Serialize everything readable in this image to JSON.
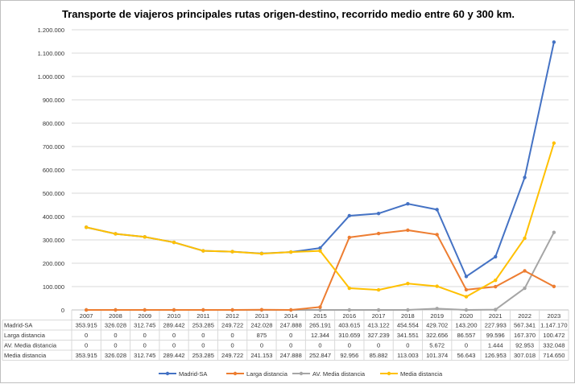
{
  "chart_data": {
    "type": "line",
    "title": "Transporte  de viajeros principales  rutas origen-destino,  recorrido medio entre 60 y 300 km.",
    "categories": [
      "2007",
      "2008",
      "2009",
      "2010",
      "2011",
      "2012",
      "2013",
      "2014",
      "2015",
      "2016",
      "2017",
      "2018",
      "2019",
      "2020",
      "2021",
      "2022",
      "2023"
    ],
    "ylim": [
      0,
      1200000
    ],
    "yticks": [
      0,
      100000,
      200000,
      300000,
      400000,
      500000,
      600000,
      700000,
      800000,
      900000,
      1000000,
      1100000,
      1200000
    ],
    "ytick_labels": [
      "0",
      "100.000",
      "200.000",
      "300.000",
      "400.000",
      "500.000",
      "600.000",
      "700.000",
      "800.000",
      "900.000",
      "1.000.000",
      "1.100.000",
      "1.200.000"
    ],
    "grid": true,
    "legend": "bottom",
    "series": [
      {
        "name": "Madrid-SA",
        "color": "#4472C4",
        "values": [
          353915,
          326028,
          312745,
          289442,
          253285,
          249722,
          242028,
          247888,
          265191,
          403615,
          413122,
          454554,
          429702,
          143200,
          227993,
          567341,
          1147170
        ],
        "labels": [
          "353.915",
          "326.028",
          "312.745",
          "289.442",
          "253.285",
          "249.722",
          "242.028",
          "247.888",
          "265.191",
          "403.615",
          "413.122",
          "454.554",
          "429.702",
          "143.200",
          "227.993",
          "567.341",
          "1.147.170"
        ]
      },
      {
        "name": "Larga distancia",
        "color": "#ED7D31",
        "values": [
          0,
          0,
          0,
          0,
          0,
          0,
          875,
          0,
          12344,
          310659,
          327239,
          341551,
          322656,
          86557,
          99596,
          167370,
          100472
        ],
        "labels": [
          "0",
          "0",
          "0",
          "0",
          "0",
          "0",
          "875",
          "0",
          "12.344",
          "310.659",
          "327.239",
          "341.551",
          "322.656",
          "86.557",
          "99.596",
          "167.370",
          "100.472"
        ]
      },
      {
        "name": "AV. Media distancia",
        "color": "#A5A5A5",
        "values": [
          0,
          0,
          0,
          0,
          0,
          0,
          0,
          0,
          0,
          0,
          0,
          0,
          5672,
          0,
          1444,
          92953,
          332048
        ],
        "labels": [
          "0",
          "0",
          "0",
          "0",
          "0",
          "0",
          "0",
          "0",
          "0",
          "0",
          "0",
          "0",
          "5.672",
          "0",
          "1.444",
          "92.953",
          "332.048"
        ]
      },
      {
        "name": "Media distancia",
        "color": "#FFC000",
        "values": [
          353915,
          326028,
          312745,
          289442,
          253285,
          249722,
          241153,
          247888,
          252847,
          92956,
          85882,
          113003,
          101374,
          56643,
          126953,
          307018,
          714650
        ],
        "labels": [
          "353.915",
          "326.028",
          "312.745",
          "289.442",
          "253.285",
          "249.722",
          "241.153",
          "247.888",
          "252.847",
          "92.956",
          "85.882",
          "113.003",
          "101.374",
          "56.643",
          "126.953",
          "307.018",
          "714.650"
        ]
      }
    ]
  }
}
